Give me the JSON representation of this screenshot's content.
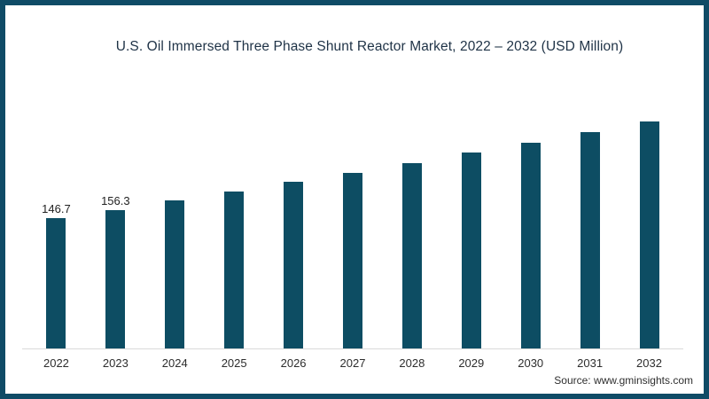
{
  "page": {
    "border_color": "#0f4b66",
    "background_color": "#ffffff"
  },
  "header": {
    "title": "U.S. Oil Immersed Three Phase Shunt Reactor Market, 2022 – 2032 (USD Million)"
  },
  "footer": {
    "source": "Source: www.gminsights.com"
  },
  "chart_data": {
    "type": "bar",
    "title": "U.S. Oil Immersed Three Phase Shunt Reactor Market, 2022 – 2032 (USD Million)",
    "categories": [
      "2022",
      "2023",
      "2024",
      "2025",
      "2026",
      "2027",
      "2028",
      "2029",
      "2030",
      "2031",
      "2032"
    ],
    "values": [
      146.7,
      156.3,
      167.4,
      177.5,
      187.6,
      198.0,
      209.5,
      220.7,
      231.9,
      244.5,
      256.4
    ],
    "data_labels": [
      "146.7",
      "156.3",
      "",
      "",
      "",
      "",
      "",
      "",
      "",
      "",
      ""
    ],
    "xlabel": "",
    "ylabel": "",
    "ylim": [
      0,
      260
    ],
    "grid": false,
    "legend": false,
    "bar_color": "#0d4d63",
    "axis_line_color": "#d9d9d9"
  }
}
